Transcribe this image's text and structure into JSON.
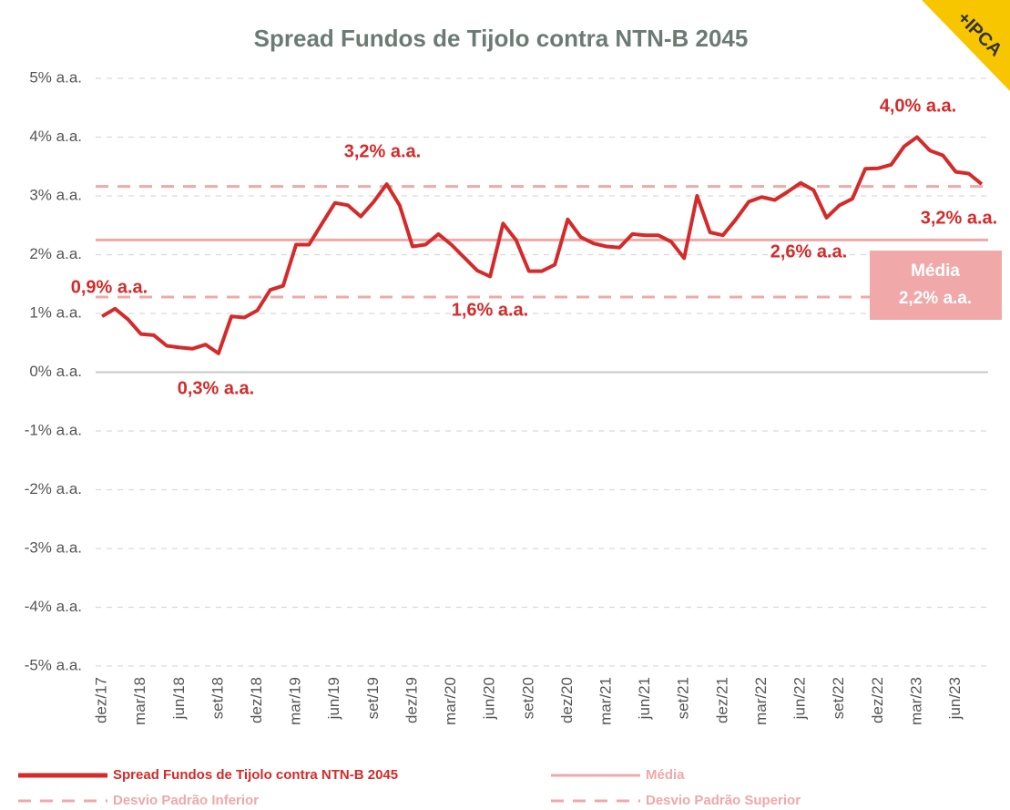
{
  "chart_data": {
    "type": "line",
    "title": "Spread Fundos  de Tijolo contra NTN-B 2045",
    "badge": "+IPCA",
    "categories": [
      "dez/17",
      null,
      null,
      "mar/18",
      null,
      null,
      "jun/18",
      null,
      null,
      "set/18",
      null,
      null,
      "dez/18",
      null,
      null,
      "mar/19",
      null,
      null,
      "jun/19",
      null,
      null,
      "set/19",
      null,
      null,
      "dez/19",
      null,
      null,
      "mar/20",
      null,
      null,
      "jun/20",
      null,
      null,
      "set/20",
      null,
      null,
      "dez/20",
      null,
      null,
      "mar/21",
      null,
      null,
      "jun/21",
      null,
      null,
      "set/21",
      null,
      null,
      "dez/21",
      null,
      null,
      "mar/22",
      null,
      null,
      "jun/22",
      null,
      null,
      "set/22",
      null,
      null,
      "dez/22",
      null,
      null,
      "mar/23",
      null,
      null,
      "jun/23",
      null,
      null
    ],
    "series": [
      {
        "name": "Spread Fundos de Tijolo contra NTN-B 2045",
        "color": "#d42a2a",
        "values": [
          0.95,
          1.08,
          0.9,
          0.65,
          0.63,
          0.45,
          0.42,
          0.4,
          0.47,
          0.32,
          0.95,
          0.93,
          1.05,
          1.4,
          1.47,
          2.17,
          2.17,
          2.53,
          2.88,
          2.84,
          2.65,
          2.9,
          3.2,
          2.84,
          2.14,
          2.17,
          2.35,
          2.17,
          1.95,
          1.73,
          1.63,
          2.53,
          2.25,
          1.72,
          1.72,
          1.83,
          2.6,
          2.3,
          2.19,
          2.14,
          2.12,
          2.35,
          2.33,
          2.33,
          2.22,
          1.94,
          3.0,
          2.38,
          2.33,
          2.6,
          2.9,
          2.98,
          2.93,
          3.07,
          3.22,
          3.1,
          2.63,
          2.84,
          2.95,
          3.46,
          3.47,
          3.53,
          3.84,
          4.0,
          3.77,
          3.69,
          3.41,
          3.38,
          3.2
        ]
      }
    ],
    "reference_lines": [
      {
        "name": "Média",
        "value": 2.25,
        "color": "#f0a8a8",
        "dashed": false
      },
      {
        "name": "Desvio Padrão Inferior",
        "value": 1.28,
        "color": "#f0a8a8",
        "dashed": true
      },
      {
        "name": "Desvio Padrão Superior",
        "value": 3.16,
        "color": "#f0a8a8",
        "dashed": true
      }
    ],
    "annotations": [
      "0,9% a.a.",
      "0,3% a.a.",
      "3,2% a.a.",
      "1,6% a.a.",
      "2,6% a.a.",
      "4,0% a.a.",
      "3,2% a.a."
    ],
    "mean_box": {
      "label": "Média",
      "value_label": "2,2% a.a."
    },
    "ylim": [
      -5,
      5
    ],
    "yticks": [
      {
        "value": 5,
        "label": "5% a.a."
      },
      {
        "value": 4,
        "label": "4% a.a."
      },
      {
        "value": 3,
        "label": "3% a.a."
      },
      {
        "value": 2,
        "label": "2% a.a."
      },
      {
        "value": 1,
        "label": "1% a.a."
      },
      {
        "value": 0,
        "label": "0% a.a."
      },
      {
        "value": -1,
        "label": "-1% a.a."
      },
      {
        "value": -2,
        "label": "-2% a.a."
      },
      {
        "value": -3,
        "label": "-3% a.a."
      },
      {
        "value": -4,
        "label": "-4% a.a."
      },
      {
        "value": -5,
        "label": "-5% a.a."
      }
    ],
    "grid": true
  }
}
